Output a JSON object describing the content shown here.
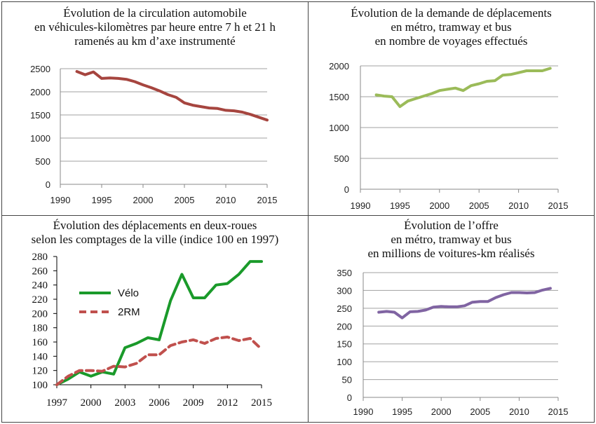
{
  "chart_data": [
    {
      "type": "line",
      "title_lines": [
        "Évolution de la circulation automobile",
        "en véhicules-kilomètres par heure entre 7 h et 21 h",
        "ramenés au km d’axe instrumenté"
      ],
      "x": [
        1992,
        1993,
        1994,
        1995,
        1996,
        1997,
        1998,
        1999,
        2000,
        2001,
        2002,
        2003,
        2004,
        2005,
        2006,
        2007,
        2008,
        2009,
        2010,
        2011,
        2012,
        2013,
        2014,
        2015
      ],
      "series": [
        {
          "values": [
            2440,
            2370,
            2430,
            2290,
            2300,
            2290,
            2270,
            2220,
            2150,
            2090,
            2020,
            1940,
            1880,
            1760,
            1710,
            1680,
            1650,
            1640,
            1600,
            1590,
            1560,
            1510,
            1450,
            1390
          ]
        }
      ],
      "xlim": [
        1990,
        2015
      ],
      "ylim": [
        0,
        2500
      ],
      "xticks": [
        "1990",
        "1995",
        "2000",
        "2005",
        "2010",
        "2015"
      ],
      "yticks": [
        "0",
        "500",
        "1000",
        "1500",
        "2000",
        "2500"
      ],
      "color": "#a6453f",
      "grid": true
    },
    {
      "type": "line",
      "title_lines": [
        "Évolution de la demande de déplacements",
        "en métro, tramway et bus",
        "en nombre de voyages effectués"
      ],
      "x": [
        1992,
        1993,
        1994,
        1995,
        1996,
        1997,
        1998,
        1999,
        2000,
        2001,
        2002,
        2003,
        2004,
        2005,
        2006,
        2007,
        2008,
        2009,
        2010,
        2011,
        2012,
        2013,
        2014
      ],
      "series": [
        {
          "values": [
            1530,
            1510,
            1500,
            1340,
            1430,
            1470,
            1510,
            1550,
            1600,
            1620,
            1640,
            1600,
            1680,
            1710,
            1750,
            1760,
            1850,
            1860,
            1890,
            1920,
            1920,
            1920,
            1960
          ]
        }
      ],
      "xlim": [
        1990,
        2015
      ],
      "ylim": [
        0,
        2000
      ],
      "xticks": [
        "1990",
        "1995",
        "2000",
        "2005",
        "2010",
        "2015"
      ],
      "yticks": [
        "0",
        "500",
        "1000",
        "1500",
        "2000"
      ],
      "color": "#9bbb59",
      "grid": true
    },
    {
      "type": "line",
      "title_lines": [
        "Évolution des déplacements en deux-roues",
        "selon les comptages de la ville (indice 100 en 1997)"
      ],
      "x": [
        1997,
        1998,
        1999,
        2000,
        2001,
        2002,
        2003,
        2004,
        2005,
        2006,
        2007,
        2008,
        2009,
        2010,
        2011,
        2012,
        2013,
        2014,
        2015
      ],
      "series": [
        {
          "name": "Vélo",
          "values": [
            100,
            108,
            118,
            112,
            118,
            115,
            152,
            158,
            166,
            163,
            218,
            255,
            222,
            222,
            240,
            242,
            255,
            273,
            273
          ],
          "color": "#1a9a2a",
          "dash": ""
        },
        {
          "name": "2RM",
          "values": [
            100,
            112,
            120,
            120,
            119,
            126,
            125,
            130,
            142,
            142,
            155,
            160,
            163,
            158,
            165,
            167,
            162,
            165,
            150
          ],
          "color": "#c0504d",
          "dash": "10,6"
        }
      ],
      "xlim": [
        1997,
        2015
      ],
      "ylim": [
        100,
        280
      ],
      "xticks": [
        "1997",
        "2000",
        "2003",
        "2006",
        "2009",
        "2012",
        "2015"
      ],
      "yticks": [
        "100",
        "120",
        "140",
        "160",
        "180",
        "200",
        "220",
        "240",
        "260",
        "280"
      ],
      "legend": "upper-left",
      "grid": false
    },
    {
      "type": "line",
      "title_lines": [
        "Évolution de l’offre",
        "en métro, tramway et bus",
        "en millions de voitures-km réalisés"
      ],
      "x": [
        1992,
        1993,
        1994,
        1995,
        1996,
        1997,
        1998,
        1999,
        2000,
        2001,
        2002,
        2003,
        2004,
        2005,
        2006,
        2007,
        2008,
        2009,
        2010,
        2011,
        2012,
        2013,
        2014
      ],
      "series": [
        {
          "values": [
            239,
            241,
            239,
            223,
            240,
            241,
            245,
            253,
            255,
            254,
            254,
            257,
            267,
            269,
            269,
            280,
            288,
            294,
            294,
            293,
            294,
            301,
            306
          ]
        }
      ],
      "xlim": [
        1990,
        2015
      ],
      "ylim": [
        0,
        350
      ],
      "xticks": [
        "1990",
        "1995",
        "2000",
        "2005",
        "2010",
        "2015"
      ],
      "yticks": [
        "0",
        "50",
        "100",
        "150",
        "200",
        "250",
        "300",
        "350"
      ],
      "color": "#8064a2",
      "grid": true
    }
  ]
}
